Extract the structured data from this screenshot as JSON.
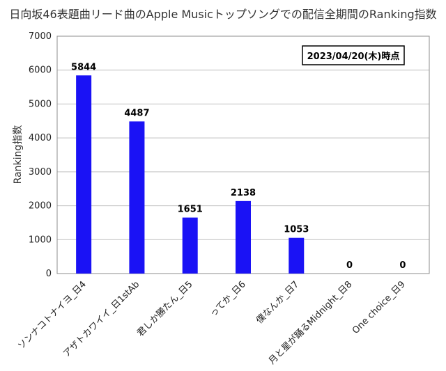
{
  "chart_data": {
    "type": "bar",
    "title": "日向坂46表題曲リード曲のApple Musicトップソングでの配信全期間のRanking指数",
    "xlabel": "",
    "ylabel": "Ranking指数",
    "categories": [
      "ソンナコトナイヨ_日4",
      "アザトカワイイ_日1stAb",
      "君しか勝たん_日5",
      "ってか_日6",
      "僕なんか_日7",
      "月と星が踊るMidnight_日8",
      "One choice_日9"
    ],
    "values": [
      5844,
      4487,
      1651,
      2138,
      1053,
      0,
      0
    ],
    "data_labels": [
      "5844",
      "4487",
      "1651",
      "2138",
      "1053",
      "0",
      "0"
    ],
    "ylim": [
      0,
      7000
    ],
    "yticks": [
      "0",
      "1000",
      "2000",
      "3000",
      "4000",
      "5000",
      "6000",
      "7000"
    ],
    "grid": true,
    "annotation": "2023/04/20(木)時点",
    "bar_color": "#1a12f5"
  }
}
